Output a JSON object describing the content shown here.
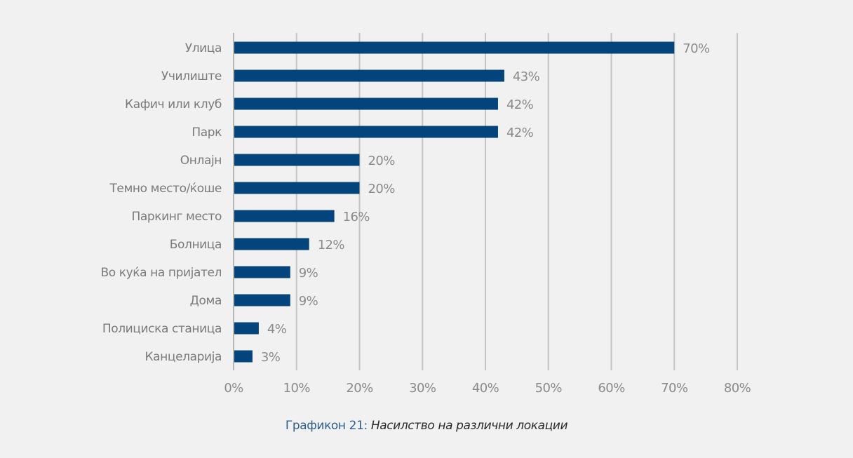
{
  "chart_data": {
    "type": "bar",
    "orientation": "horizontal",
    "categories": [
      "Улица",
      "Училиште",
      "Кафич или клуб",
      "Парк",
      "Онлајн",
      "Темно место/ќоше",
      "Паркинг место",
      "Болница",
      "Во куќа на пријател",
      "Дома",
      "Полициска станица",
      "Канцеларија"
    ],
    "values": [
      70,
      43,
      42,
      42,
      20,
      20,
      16,
      12,
      9,
      9,
      4,
      3
    ],
    "value_labels": [
      "70%",
      "43%",
      "42%",
      "42%",
      "20%",
      "20%",
      "16%",
      "12%",
      "9%",
      "9%",
      "4%",
      "3%"
    ],
    "x_ticks": [
      "0%",
      "10%",
      "20%",
      "30%",
      "40%",
      "50%",
      "60%",
      "70%",
      "80%"
    ],
    "xlim": [
      0,
      80
    ],
    "grid": "vertical",
    "bar_color": "#03447c"
  },
  "caption": {
    "number": "Графикон 21:",
    "title": "Насилство на различни локации"
  }
}
